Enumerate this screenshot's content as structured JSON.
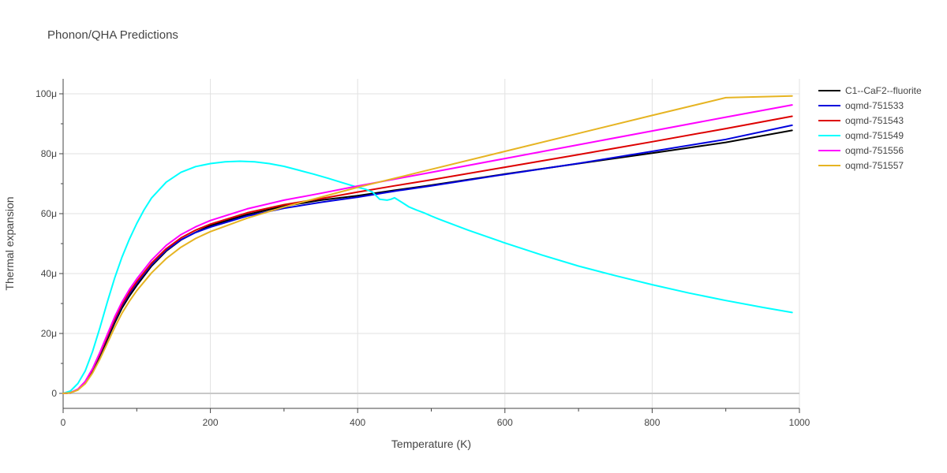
{
  "chart_data": {
    "type": "line",
    "title": "Phonon/QHA Predictions",
    "xlabel": "Temperature (K)",
    "ylabel": "Thermal expansion",
    "xlim": [
      0,
      1000
    ],
    "ylim": [
      -5e-06,
      0.000105
    ],
    "x_ticks": [
      0,
      200,
      400,
      600,
      800,
      1000
    ],
    "x_tick_labels": [
      "0",
      "200",
      "400",
      "600",
      "800",
      "1000"
    ],
    "y_ticks": [
      0,
      2e-05,
      4e-05,
      6e-05,
      8e-05,
      0.0001
    ],
    "y_tick_labels": [
      "0",
      "20μ",
      "40μ",
      "60μ",
      "80μ",
      "100μ"
    ],
    "grid": true,
    "legend_position": "top-right",
    "series": [
      {
        "name": "C1--CaF2--fluorite",
        "color": "#000000",
        "x": [
          0,
          10,
          20,
          30,
          40,
          50,
          60,
          70,
          80,
          90,
          100,
          120,
          140,
          160,
          180,
          200,
          250,
          300,
          350,
          400,
          450,
          500,
          600,
          700,
          800,
          900,
          990
        ],
        "y": [
          0,
          2e-07,
          1.2e-06,
          3.5e-06,
          7.5e-06,
          1.25e-05,
          1.8e-05,
          2.35e-05,
          2.85e-05,
          3.25e-05,
          3.6e-05,
          4.25e-05,
          4.75e-05,
          5.12e-05,
          5.38e-05,
          5.6e-05,
          5.97e-05,
          6.25e-05,
          6.45e-05,
          6.6e-05,
          6.78e-05,
          6.95e-05,
          7.32e-05,
          7.67e-05,
          8.02e-05,
          8.38e-05,
          8.78e-05
        ]
      },
      {
        "name": "oqmd-751533",
        "color": "#0000dd",
        "x": [
          0,
          10,
          20,
          30,
          40,
          50,
          60,
          70,
          80,
          90,
          100,
          120,
          140,
          160,
          180,
          200,
          250,
          300,
          350,
          400,
          450,
          500,
          600,
          700,
          800,
          900,
          990
        ],
        "y": [
          0,
          2e-07,
          1.3e-06,
          3.7e-06,
          7.8e-06,
          1.3e-05,
          1.87e-05,
          2.43e-05,
          2.93e-05,
          3.33e-05,
          3.68e-05,
          4.3e-05,
          4.78e-05,
          5.13e-05,
          5.37e-05,
          5.55e-05,
          5.92e-05,
          6.18e-05,
          6.38e-05,
          6.55e-05,
          6.75e-05,
          6.93e-05,
          7.31e-05,
          7.68e-05,
          8.08e-05,
          8.48e-05,
          8.95e-05
        ]
      },
      {
        "name": "oqmd-751543",
        "color": "#dd0000",
        "x": [
          0,
          10,
          20,
          30,
          40,
          50,
          60,
          70,
          80,
          90,
          100,
          120,
          140,
          160,
          180,
          200,
          250,
          300,
          350,
          400,
          450,
          500,
          600,
          700,
          800,
          900,
          990
        ],
        "y": [
          0,
          2e-07,
          1.3e-06,
          3.8e-06,
          8e-06,
          1.33e-05,
          1.9e-05,
          2.47e-05,
          2.97e-05,
          3.38e-05,
          3.73e-05,
          4.35e-05,
          4.83e-05,
          5.19e-05,
          5.45e-05,
          5.65e-05,
          6.03e-05,
          6.3e-05,
          6.5e-05,
          6.72e-05,
          6.93e-05,
          7.13e-05,
          7.55e-05,
          7.97e-05,
          8.4e-05,
          8.84e-05,
          9.25e-05
        ]
      },
      {
        "name": "oqmd-751549",
        "color": "#00ffff",
        "x": [
          0,
          10,
          20,
          30,
          40,
          50,
          60,
          70,
          80,
          90,
          100,
          110,
          120,
          140,
          160,
          180,
          200,
          220,
          240,
          260,
          280,
          300,
          320,
          340,
          360,
          380,
          400,
          410,
          420,
          430,
          440,
          445,
          450,
          460,
          470,
          480,
          490,
          500,
          510,
          550,
          600,
          650,
          700,
          750,
          800,
          850,
          900,
          950,
          990
        ],
        "y": [
          0,
          8e-07,
          3.3e-06,
          7.5e-06,
          1.4e-05,
          2.2e-05,
          3.05e-05,
          3.85e-05,
          4.55e-05,
          5.15e-05,
          5.67e-05,
          6.13e-05,
          6.52e-05,
          7.05e-05,
          7.38e-05,
          7.57e-05,
          7.67e-05,
          7.73e-05,
          7.75e-05,
          7.73e-05,
          7.67e-05,
          7.58e-05,
          7.45e-05,
          7.32e-05,
          7.18e-05,
          7.03e-05,
          6.88e-05,
          6.82e-05,
          6.72e-05,
          6.48e-05,
          6.45e-05,
          6.48e-05,
          6.53e-05,
          6.38e-05,
          6.22e-05,
          6.12e-05,
          6.03e-05,
          5.92e-05,
          5.82e-05,
          5.45e-05,
          5.02e-05,
          4.62e-05,
          4.25e-05,
          3.93e-05,
          3.63e-05,
          3.35e-05,
          3.1e-05,
          2.87e-05,
          2.7e-05
        ]
      },
      {
        "name": "oqmd-751556",
        "color": "#ff00ff",
        "x": [
          0,
          10,
          20,
          30,
          40,
          50,
          60,
          70,
          80,
          90,
          100,
          120,
          140,
          160,
          180,
          200,
          250,
          300,
          350,
          400,
          450,
          500,
          600,
          700,
          800,
          900,
          990
        ],
        "y": [
          0,
          2e-07,
          1.4e-06,
          4e-06,
          8.3e-06,
          1.38e-05,
          1.97e-05,
          2.55e-05,
          3.05e-05,
          3.47e-05,
          3.82e-05,
          4.45e-05,
          4.94e-05,
          5.3e-05,
          5.56e-05,
          5.77e-05,
          6.16e-05,
          6.45e-05,
          6.68e-05,
          6.92e-05,
          7.15e-05,
          7.38e-05,
          7.84e-05,
          8.3e-05,
          8.76e-05,
          9.22e-05,
          9.63e-05
        ]
      },
      {
        "name": "oqmd-751557",
        "color": "#e6b422",
        "x": [
          0,
          10,
          20,
          30,
          40,
          50,
          60,
          70,
          80,
          90,
          100,
          120,
          140,
          160,
          180,
          200,
          250,
          300,
          350,
          400,
          450,
          500,
          600,
          700,
          800,
          900,
          990
        ],
        "y": [
          0,
          2e-07,
          1.1e-06,
          3.2e-06,
          6.8e-06,
          1.15e-05,
          1.67e-05,
          2.2e-05,
          2.68e-05,
          3.08e-05,
          3.43e-05,
          4.02e-05,
          4.5e-05,
          4.88e-05,
          5.17e-05,
          5.4e-05,
          5.85e-05,
          6.22e-05,
          6.55e-05,
          6.88e-05,
          7.18e-05,
          7.48e-05,
          8.08e-05,
          8.68e-05,
          9.28e-05,
          9.87e-05,
          9.93e-05
        ]
      }
    ]
  }
}
